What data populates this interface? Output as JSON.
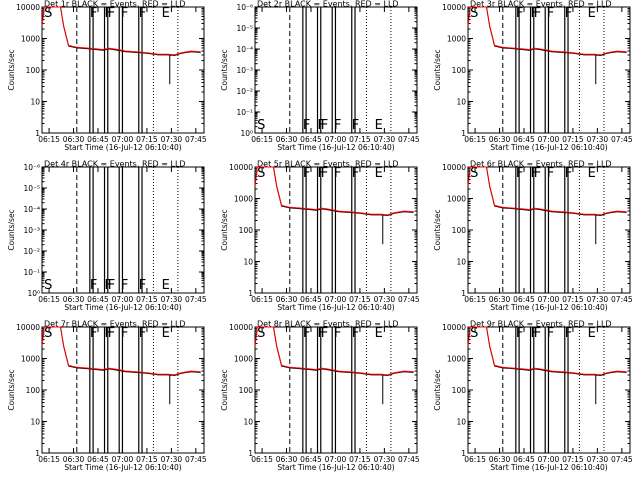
{
  "panels_common": {
    "xlabel": "Start Time (16-Jul-12 06:10:40)",
    "ylabel": "Counts/sec",
    "xticks": [
      "06:15",
      "06:30",
      "06:45",
      "07:00",
      "07:15",
      "07:30",
      "07:45"
    ],
    "ytick_labels_counts": [
      "10000",
      "1000",
      "100",
      "10",
      "1"
    ],
    "ytick_labels_rate": [
      "10⁻⁶",
      "10⁻⁵",
      "10⁻⁴",
      "10⁻³",
      "10⁻²",
      "10⁻¹",
      "10⁰"
    ],
    "colors": {
      "events": "#000000",
      "lld": "#ff0000"
    }
  },
  "chart_data": [
    {
      "title": "Det 1r BLACK = Events, RED = LLD",
      "type": "line",
      "yscale": "log",
      "ylim": [
        1,
        10000
      ],
      "markers": [
        "S",
        "F",
        "F",
        "F",
        "F",
        "F",
        "E"
      ],
      "series": [
        {
          "name": "Events",
          "color": "#000000"
        },
        {
          "name": "LLD",
          "color": "#ff0000"
        }
      ]
    },
    {
      "title": "Det 2r BLACK = Events, RED = LLD",
      "type": "line",
      "yscale": "log",
      "ylim": [
        1e-06,
        1
      ],
      "markers": [
        "S",
        "F",
        "F",
        "F",
        "F",
        "F",
        "E"
      ],
      "series": []
    },
    {
      "title": "Det 3r BLACK = Events, RED = LLD",
      "type": "line",
      "yscale": "log",
      "ylim": [
        1,
        10000
      ],
      "markers": [
        "S",
        "F",
        "F",
        "F",
        "F",
        "F",
        "E"
      ],
      "series": [
        {
          "name": "Events",
          "color": "#000000"
        },
        {
          "name": "LLD",
          "color": "#ff0000"
        }
      ]
    },
    {
      "title": "Det 4r BLACK = Events, RED = LLD",
      "type": "line",
      "yscale": "log",
      "ylim": [
        1e-06,
        1
      ],
      "markers": [
        "S",
        "F",
        "F",
        "F",
        "F",
        "F",
        "E"
      ],
      "series": []
    },
    {
      "title": "Det 5r BLACK = Events, RED = LLD",
      "type": "line",
      "yscale": "log",
      "ylim": [
        1,
        10000
      ],
      "markers": [
        "S",
        "F",
        "F",
        "F",
        "F",
        "F",
        "E"
      ],
      "series": [
        {
          "name": "Events",
          "color": "#000000"
        },
        {
          "name": "LLD",
          "color": "#ff0000"
        }
      ]
    },
    {
      "title": "Det 6r BLACK = Events, RED = LLD",
      "type": "line",
      "yscale": "log",
      "ylim": [
        1,
        10000
      ],
      "markers": [
        "S",
        "F",
        "F",
        "F",
        "F",
        "F",
        "E"
      ],
      "series": [
        {
          "name": "Events",
          "color": "#000000"
        },
        {
          "name": "LLD",
          "color": "#ff0000"
        }
      ]
    },
    {
      "title": "Det 7r BLACK = Events, RED = LLD",
      "type": "line",
      "yscale": "log",
      "ylim": [
        1,
        10000
      ],
      "markers": [
        "S",
        "F",
        "F",
        "F",
        "F",
        "F",
        "E"
      ],
      "series": [
        {
          "name": "Events",
          "color": "#000000"
        },
        {
          "name": "LLD",
          "color": "#ff0000"
        }
      ]
    },
    {
      "title": "Det 8r BLACK = Events, RED = LLD",
      "type": "line",
      "yscale": "log",
      "ylim": [
        1,
        10000
      ],
      "markers": [
        "S",
        "F",
        "F",
        "F",
        "F",
        "F",
        "E"
      ],
      "series": [
        {
          "name": "Events",
          "color": "#000000"
        },
        {
          "name": "LLD",
          "color": "#ff0000"
        }
      ]
    },
    {
      "title": "Det 9r BLACK = Events, RED = LLD",
      "type": "line",
      "yscale": "log",
      "ylim": [
        1,
        10000
      ],
      "markers": [
        "S",
        "F",
        "F",
        "F",
        "F",
        "F",
        "E"
      ],
      "series": [
        {
          "name": "Events",
          "color": "#000000"
        },
        {
          "name": "LLD",
          "color": "#ff0000"
        }
      ]
    }
  ]
}
